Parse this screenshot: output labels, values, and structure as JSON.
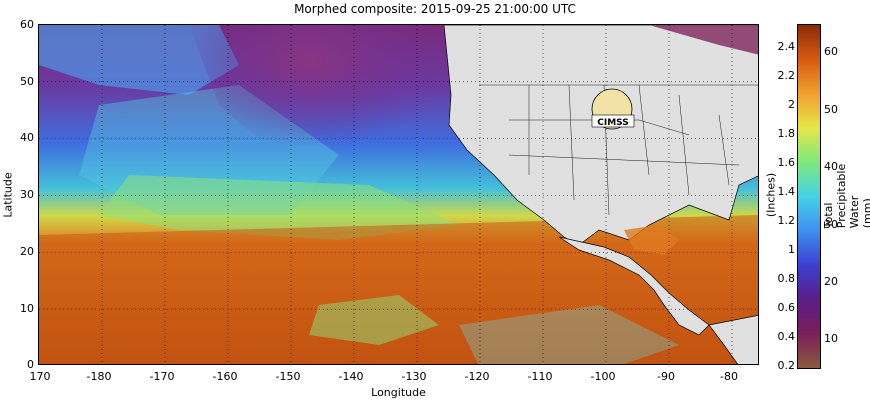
{
  "title": "Morphed composite: 2015-09-25 21:00:00 UTC",
  "axes": {
    "xlabel": "Longitude",
    "ylabel": "Latitude",
    "lat_ticks": [
      "60",
      "50",
      "40",
      "30",
      "20",
      "10",
      "0"
    ],
    "lon_ticks": [
      "170",
      "-180",
      "-170",
      "-160",
      "-150",
      "-140",
      "-130",
      "-120",
      "-110",
      "-100",
      "-90",
      "-80"
    ]
  },
  "colorbar": {
    "inches_label": "(Inches)",
    "mm_label": "Total Precipitable Water (mm)",
    "inch_ticks": [
      "2.4",
      "2.2",
      "2",
      "1.8",
      "1.6",
      "1.4",
      "1.2",
      "1",
      "0.8",
      "0.6",
      "0.4",
      "0.2"
    ],
    "mm_ticks": [
      "60",
      "50",
      "40",
      "30",
      "20",
      "10"
    ],
    "colors": [
      "#8a5a3c",
      "#7a1f5a",
      "#5a1e86",
      "#3d3fd0",
      "#3f8ff0",
      "#44d2e6",
      "#7fe87a",
      "#e6e64a",
      "#f0a030",
      "#d85a10",
      "#8a2a08"
    ]
  },
  "logo": {
    "text": "CIMSS"
  }
}
